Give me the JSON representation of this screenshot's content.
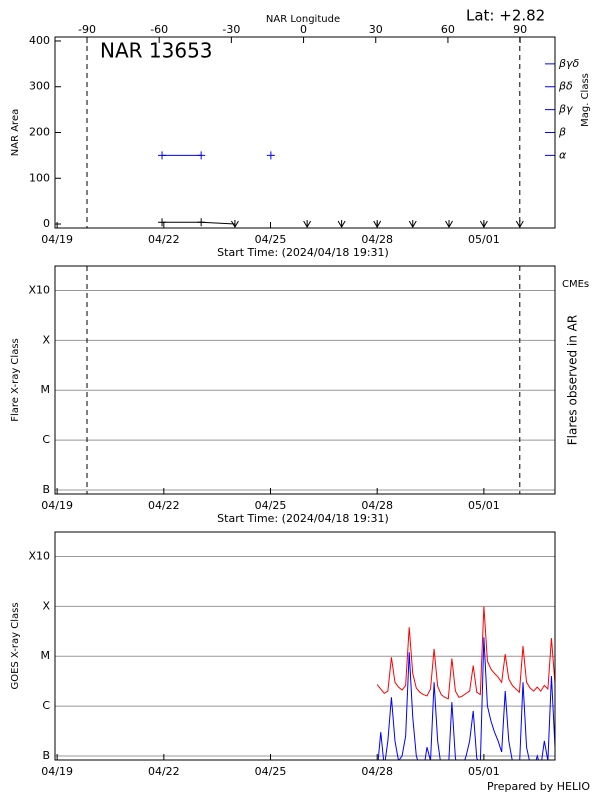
{
  "chart_data": [
    {
      "type": "line",
      "title": "NAR 13653",
      "subtitle": "Lat:  +2.82",
      "xlabel": "Start Time: (2024/04/18 19:31)",
      "ylabel": "NAR Area",
      "x2label": "NAR Longitude",
      "y2label": "Mag. Class",
      "xlim": [
        -0.06,
        14.0
      ],
      "xticks": [
        {
          "value": 0,
          "label": "04/19"
        },
        {
          "value": 3,
          "label": "04/22"
        },
        {
          "value": 6,
          "label": "04/25"
        },
        {
          "value": 9,
          "label": "04/28"
        },
        {
          "value": 12,
          "label": "05/01"
        }
      ],
      "x2lim": [
        -103.3,
        104.5
      ],
      "x2ticks": [
        -90,
        -60,
        -30,
        0,
        30,
        60,
        90
      ],
      "ylim": [
        -8.7,
        408.7
      ],
      "yticks": [
        0,
        100,
        200,
        300,
        400
      ],
      "y2lim": [
        -8.7,
        408.7
      ],
      "y2ticks": [
        {
          "value": 150,
          "label": "α"
        },
        {
          "value": 200,
          "label": "β"
        },
        {
          "value": 250,
          "label": "βγ"
        },
        {
          "value": 300,
          "label": "βδ"
        },
        {
          "value": 350,
          "label": "βγδ"
        }
      ],
      "y2color": "#0000ff",
      "grid": false,
      "vlines": [
        0.84,
        13.01
      ],
      "series": [
        {
          "color": "#000000",
          "marker": [
            "plus",
            "plus",
            null
          ],
          "x": [
            2.95,
            4.05,
            5.0
          ],
          "values": [
            4,
            4,
            0
          ]
        },
        {
          "color": "#000000",
          "marker": "arrow",
          "line": false,
          "x": [
            5.0,
            7.03,
            8.0,
            9.0,
            10.0,
            11.02,
            12.0,
            13.01
          ],
          "values": [
            0,
            0,
            0,
            0,
            0,
            0,
            0,
            0
          ]
        },
        {
          "color": "#0000ff",
          "marker": "plus",
          "axis": "y2",
          "x": [
            2.95,
            4.05,
            5.0,
            6.01
          ],
          "values": [
            150,
            150,
            null,
            150
          ]
        }
      ]
    },
    {
      "type": "line",
      "xlabel": "Start Time: (2024/04/18 19:31)",
      "ylabel": "Flare X-ray Class",
      "y2label": "Flares observed in AR",
      "annotation": "CMEs",
      "annotation_color": "#ff0000",
      "xlim": [
        -0.06,
        14.0
      ],
      "xticks": [
        {
          "value": 0,
          "label": "04/19"
        },
        {
          "value": 3,
          "label": "04/22"
        },
        {
          "value": 6,
          "label": "04/25"
        },
        {
          "value": 9,
          "label": "04/28"
        },
        {
          "value": 12,
          "label": "05/01"
        }
      ],
      "yscale": "log",
      "ylim": [
        8.3e-08,
        0.0031
      ],
      "yticks": [
        {
          "value": 1e-07,
          "label": "B"
        },
        {
          "value": 1e-06,
          "label": "C"
        },
        {
          "value": 1e-05,
          "label": "M"
        },
        {
          "value": 0.0001,
          "label": "X"
        },
        {
          "value": 0.001,
          "label": "X10"
        }
      ],
      "grid": true,
      "vlines": [
        0.84,
        13.01
      ],
      "series": []
    },
    {
      "type": "line",
      "ylabel": "GOES X-ray Class",
      "xlim": [
        -0.06,
        14.0
      ],
      "xticks": [
        {
          "value": 0,
          "label": "04/19"
        },
        {
          "value": 3,
          "label": "04/22"
        },
        {
          "value": 6,
          "label": "04/25"
        },
        {
          "value": 9,
          "label": "04/28"
        },
        {
          "value": 12,
          "label": "05/01"
        }
      ],
      "yscale": "log",
      "ylim": [
        8.3e-08,
        0.0031
      ],
      "yticks": [
        {
          "value": 1e-07,
          "label": "B"
        },
        {
          "value": 1e-06,
          "label": "C"
        },
        {
          "value": 1e-05,
          "label": "M"
        },
        {
          "value": 0.0001,
          "label": "X"
        },
        {
          "value": 0.001,
          "label": "X10"
        }
      ],
      "grid": true,
      "x": [
        9.0,
        9.1,
        9.2,
        9.3,
        9.4,
        9.5,
        9.6,
        9.7,
        9.8,
        9.9,
        10.0,
        10.1,
        10.2,
        10.3,
        10.4,
        10.5,
        10.6,
        10.7,
        10.8,
        10.9,
        11.0,
        11.1,
        11.2,
        11.3,
        11.4,
        11.5,
        11.6,
        11.7,
        11.8,
        11.9,
        12.0,
        12.1,
        12.2,
        12.3,
        12.4,
        12.5,
        12.6,
        12.7,
        12.8,
        12.9,
        13.0,
        13.1,
        13.2,
        13.3,
        13.4,
        13.5,
        13.6,
        13.7,
        13.8,
        13.9,
        14.0
      ],
      "series": [
        {
          "color": "#ff0000",
          "values": [
            2.7e-06,
            2.2e-06,
            1.8e-06,
            2e-06,
            9.5e-06,
            3e-06,
            2.4e-06,
            2.1e-06,
            2.6e-06,
            3.8e-05,
            4.5e-06,
            2.3e-06,
            1.9e-06,
            1.7e-06,
            1.6e-06,
            2.2e-06,
            1.4e-05,
            2.5e-06,
            1.7e-06,
            1.5e-06,
            1.4e-06,
            9e-06,
            2e-06,
            1.5e-06,
            1.6e-06,
            1.8e-06,
            2e-06,
            6.5e-06,
            1.9e-06,
            1.7e-06,
            0.0001,
            8e-06,
            5.5e-06,
            4.5e-06,
            3.8e-06,
            3e-06,
            1.1e-05,
            3.5e-06,
            2.6e-06,
            2.2e-06,
            1.9e-06,
            1.6e-05,
            3e-06,
            2.3e-06,
            2e-06,
            2.4e-06,
            2e-06,
            2.6e-06,
            2.2e-06,
            2.3e-05,
            2.8e-06
          ]
        },
        {
          "color": "#0000ff",
          "values": [
            5e-08,
            3e-07,
            6e-08,
            2e-07,
            1.5e-06,
            2e-07,
            8e-08,
            1e-07,
            2.5e-07,
            1.2e-05,
            6e-07,
            1e-07,
            6e-08,
            5e-08,
            1.5e-07,
            8e-08,
            3e-06,
            2e-07,
            6e-08,
            5e-08,
            5e-08,
            1.2e-06,
            9e-08,
            5e-08,
            6e-08,
            1e-07,
            2e-07,
            8e-07,
            9e-08,
            7e-08,
            2.4e-05,
            1e-06,
            5e-07,
            3e-07,
            2e-07,
            1.2e-07,
            2e-06,
            2e-07,
            8e-08,
            6e-08,
            6e-08,
            3e-06,
            1.5e-07,
            7e-08,
            5e-08,
            1e-07,
            6e-08,
            2e-07,
            8e-08,
            4e-06,
            1.5e-07
          ]
        }
      ]
    }
  ],
  "footer": "Prepared by HELIO"
}
